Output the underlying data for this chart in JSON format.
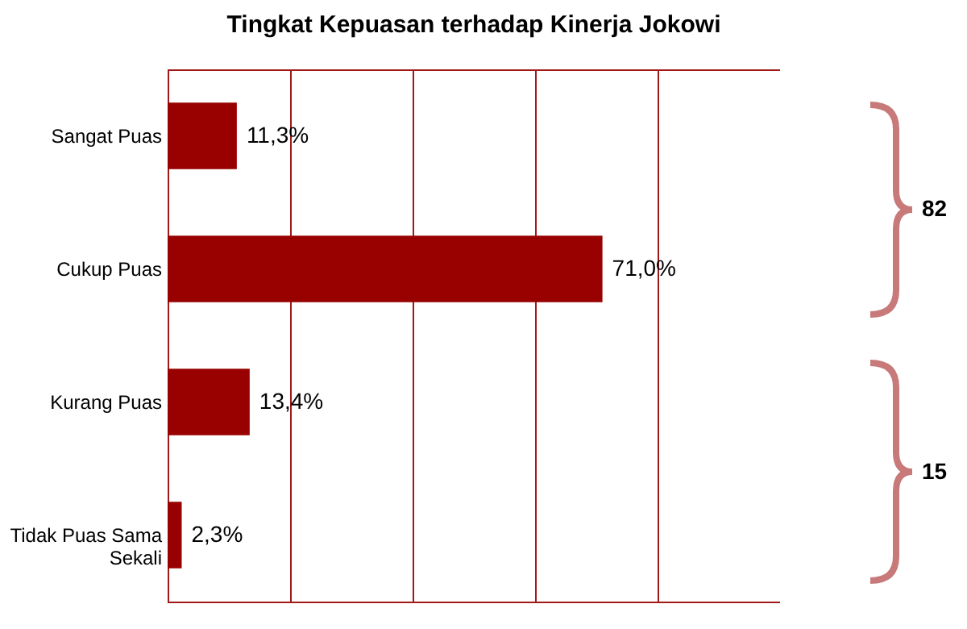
{
  "chart_data": {
    "type": "bar",
    "orientation": "horizontal",
    "title": "Tingkat Kepuasan terhadap Kinerja Jokowi",
    "categories": [
      "Sangat Puas",
      "Cukup Puas",
      "Kurang Puas",
      "Tidak Puas Sama Sekali"
    ],
    "values": [
      11.3,
      71.0,
      13.4,
      2.3
    ],
    "value_labels": [
      "11,3%",
      "71,0%",
      "13,4%",
      "2,3%"
    ],
    "color": "#990000",
    "xlim": [
      0,
      100
    ],
    "xticks": [
      0,
      20,
      40,
      60,
      80,
      100
    ],
    "tick_labels": "y",
    "grid": "x",
    "annotations": [
      "82",
      "15"
    ]
  }
}
